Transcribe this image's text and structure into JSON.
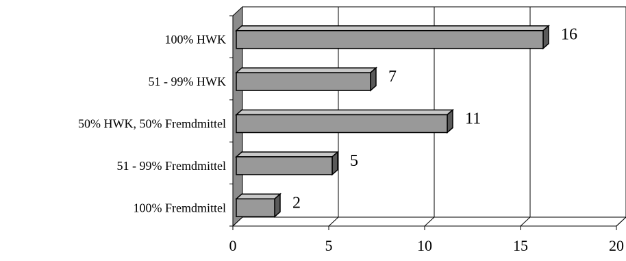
{
  "chart_data": {
    "type": "bar",
    "orientation": "horizontal",
    "style": "3d",
    "categories": [
      "100% HWK",
      "51 - 99% HWK",
      "50% HWK, 50% Fremdmittel",
      "51 - 99% Fremdmittel",
      "100% Fremdmittel"
    ],
    "values": [
      16,
      7,
      11,
      5,
      2
    ],
    "data_labels": [
      "16",
      "7",
      "11",
      "5",
      "2"
    ],
    "xlim": [
      0,
      20
    ],
    "x_ticks": [
      0,
      5,
      10,
      15,
      20
    ],
    "x_tick_labels": [
      "0",
      "5",
      "10",
      "15",
      "20"
    ],
    "grid": true,
    "legend": "none",
    "title": "",
    "xlabel": "",
    "ylabel": "",
    "colors": {
      "bar_front": "#999999",
      "bar_top": "#c8c8c8",
      "bar_side": "#5a5a5a",
      "wall": "#8c8c8c",
      "grid": "#000000"
    }
  }
}
